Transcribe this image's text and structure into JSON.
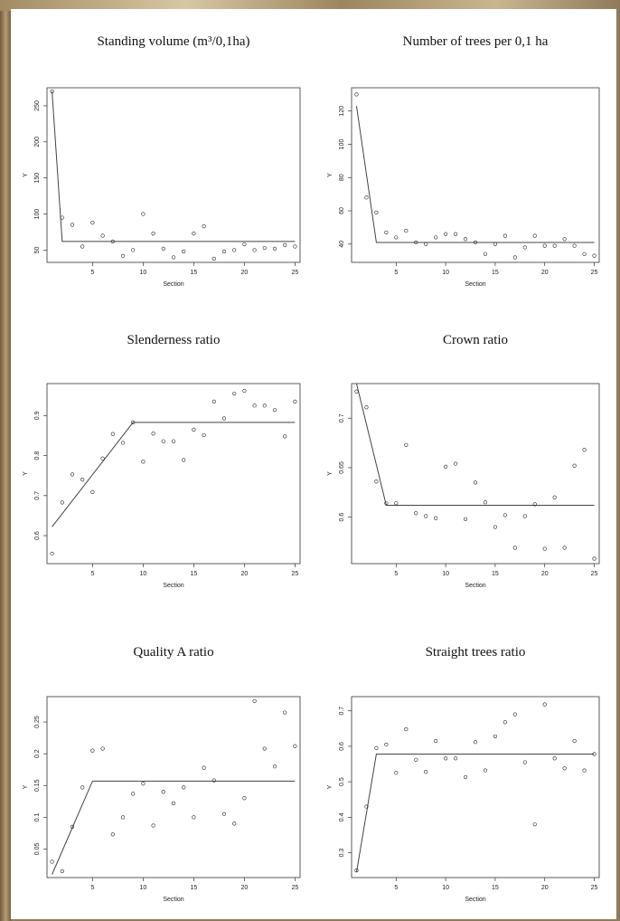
{
  "chart_data": [
    {
      "type": "scatter",
      "title": "Standing volume  (m³/0,1ha)",
      "xlabel": "Section",
      "ylabel": "Y",
      "xlim": [
        0.5,
        25.5
      ],
      "ylim": [
        33,
        275
      ],
      "xticks": [
        5,
        10,
        15,
        20,
        25
      ],
      "yticks": [
        50,
        100,
        150,
        200,
        250
      ],
      "x": [
        1,
        2,
        3,
        4,
        5,
        6,
        7,
        8,
        9,
        10,
        11,
        12,
        13,
        14,
        15,
        16,
        17,
        18,
        19,
        20,
        21,
        22,
        23,
        24,
        25
      ],
      "y": [
        270,
        95,
        85,
        55,
        88,
        70,
        62,
        42,
        50,
        100,
        73,
        52,
        40,
        48,
        73,
        83,
        38,
        48,
        50,
        58,
        50,
        53,
        52,
        57,
        55
      ],
      "fit_line": {
        "x": [
          1,
          2,
          25
        ],
        "y": [
          270,
          62,
          62
        ]
      }
    },
    {
      "type": "scatter",
      "title": "Number of trees per 0,1 ha",
      "xlabel": "Section",
      "ylabel": "Y",
      "xlim": [
        0.5,
        25.5
      ],
      "ylim": [
        29,
        134
      ],
      "xticks": [
        5,
        10,
        15,
        20,
        25
      ],
      "yticks": [
        40,
        60,
        80,
        100,
        120
      ],
      "x": [
        1,
        2,
        3,
        4,
        5,
        6,
        7,
        8,
        9,
        10,
        11,
        12,
        13,
        14,
        15,
        16,
        17,
        18,
        19,
        20,
        21,
        22,
        23,
        24,
        25
      ],
      "y": [
        130,
        68,
        59,
        47,
        44,
        48,
        41,
        40,
        44,
        46,
        46,
        43,
        41,
        34,
        40,
        45,
        32,
        38,
        45,
        39,
        39,
        43,
        39,
        34,
        33
      ],
      "fit_line": {
        "x": [
          1,
          3,
          25
        ],
        "y": [
          123,
          41,
          41
        ]
      }
    },
    {
      "type": "scatter",
      "title": "Slenderness ratio",
      "xlabel": "Section",
      "ylabel": "Y",
      "xlim": [
        0.5,
        25.5
      ],
      "ylim": [
        0.53,
        0.98
      ],
      "xticks": [
        5,
        10,
        15,
        20,
        25
      ],
      "yticks": [
        0.6,
        0.7,
        0.8,
        0.9
      ],
      "x": [
        1,
        2,
        3,
        4,
        5,
        6,
        7,
        8,
        9,
        10,
        11,
        12,
        13,
        14,
        15,
        16,
        17,
        18,
        19,
        20,
        21,
        22,
        23,
        24,
        25
      ],
      "y": [
        0.555,
        0.683,
        0.753,
        0.74,
        0.709,
        0.793,
        0.854,
        0.832,
        0.883,
        0.785,
        0.855,
        0.836,
        0.836,
        0.789,
        0.865,
        0.851,
        0.935,
        0.893,
        0.955,
        0.962,
        0.925,
        0.925,
        0.914,
        0.848,
        0.935
      ],
      "fit_line": {
        "x": [
          1,
          9,
          25
        ],
        "y": [
          0.622,
          0.883,
          0.883
        ]
      }
    },
    {
      "type": "scatter",
      "title": "Crown ratio",
      "xlabel": "Section",
      "ylabel": "Y",
      "xlim": [
        0.5,
        25.5
      ],
      "ylim": [
        0.553,
        0.735
      ],
      "xticks": [
        5,
        10,
        15,
        20,
        25
      ],
      "yticks": [
        0.6,
        0.65,
        0.7
      ],
      "x": [
        1,
        2,
        3,
        4,
        5,
        6,
        7,
        8,
        9,
        10,
        11,
        12,
        13,
        14,
        15,
        16,
        17,
        18,
        19,
        20,
        21,
        22,
        23,
        24,
        25
      ],
      "y": [
        0.727,
        0.711,
        0.636,
        0.614,
        0.614,
        0.673,
        0.604,
        0.601,
        0.599,
        0.651,
        0.654,
        0.598,
        0.635,
        0.615,
        0.59,
        0.602,
        0.569,
        0.601,
        0.613,
        0.568,
        0.62,
        0.569,
        0.652,
        0.668,
        0.558
      ],
      "fit_line": {
        "x": [
          1,
          4,
          25
        ],
        "y": [
          0.735,
          0.612,
          0.612
        ]
      }
    },
    {
      "type": "scatter",
      "title": "Quality A ratio",
      "xlabel": "Section",
      "ylabel": "Y",
      "xlim": [
        0.5,
        25.5
      ],
      "ylim": [
        0.005,
        0.29
      ],
      "xticks": [
        5,
        10,
        15,
        20,
        25
      ],
      "yticks": [
        0.05,
        0.1,
        0.15,
        0.2,
        0.25
      ],
      "x": [
        1,
        2,
        3,
        4,
        5,
        6,
        7,
        8,
        9,
        10,
        11,
        12,
        13,
        14,
        15,
        16,
        17,
        18,
        19,
        20,
        21,
        22,
        23,
        24,
        25
      ],
      "y": [
        0.03,
        0.015,
        0.085,
        0.147,
        0.205,
        0.208,
        0.073,
        0.1,
        0.137,
        0.153,
        0.087,
        0.14,
        0.122,
        0.147,
        0.1,
        0.178,
        0.158,
        0.105,
        0.09,
        0.13,
        0.283,
        0.208,
        0.18,
        0.265,
        0.212
      ],
      "fit_line": {
        "x": [
          1,
          5,
          25
        ],
        "y": [
          0.01,
          0.157,
          0.157
        ]
      }
    },
    {
      "type": "scatter",
      "title": "Straight trees ratio",
      "xlabel": "Section",
      "ylabel": "Y",
      "xlim": [
        0.5,
        25.5
      ],
      "ylim": [
        0.23,
        0.74
      ],
      "xticks": [
        5,
        10,
        15,
        20,
        25
      ],
      "yticks": [
        0.3,
        0.4,
        0.5,
        0.6,
        0.7
      ],
      "x": [
        1,
        2,
        3,
        4,
        5,
        6,
        7,
        8,
        9,
        10,
        11,
        12,
        13,
        14,
        15,
        16,
        17,
        18,
        19,
        20,
        21,
        22,
        23,
        24,
        25
      ],
      "y": [
        0.25,
        0.43,
        0.595,
        0.605,
        0.525,
        0.648,
        0.562,
        0.528,
        0.615,
        0.566,
        0.566,
        0.513,
        0.612,
        0.532,
        0.628,
        0.668,
        0.69,
        0.555,
        0.38,
        0.718,
        0.566,
        0.538,
        0.615,
        0.532,
        0.578
      ],
      "fit_line": {
        "x": [
          1,
          3,
          25
        ],
        "y": [
          0.245,
          0.578,
          0.578
        ]
      }
    }
  ]
}
